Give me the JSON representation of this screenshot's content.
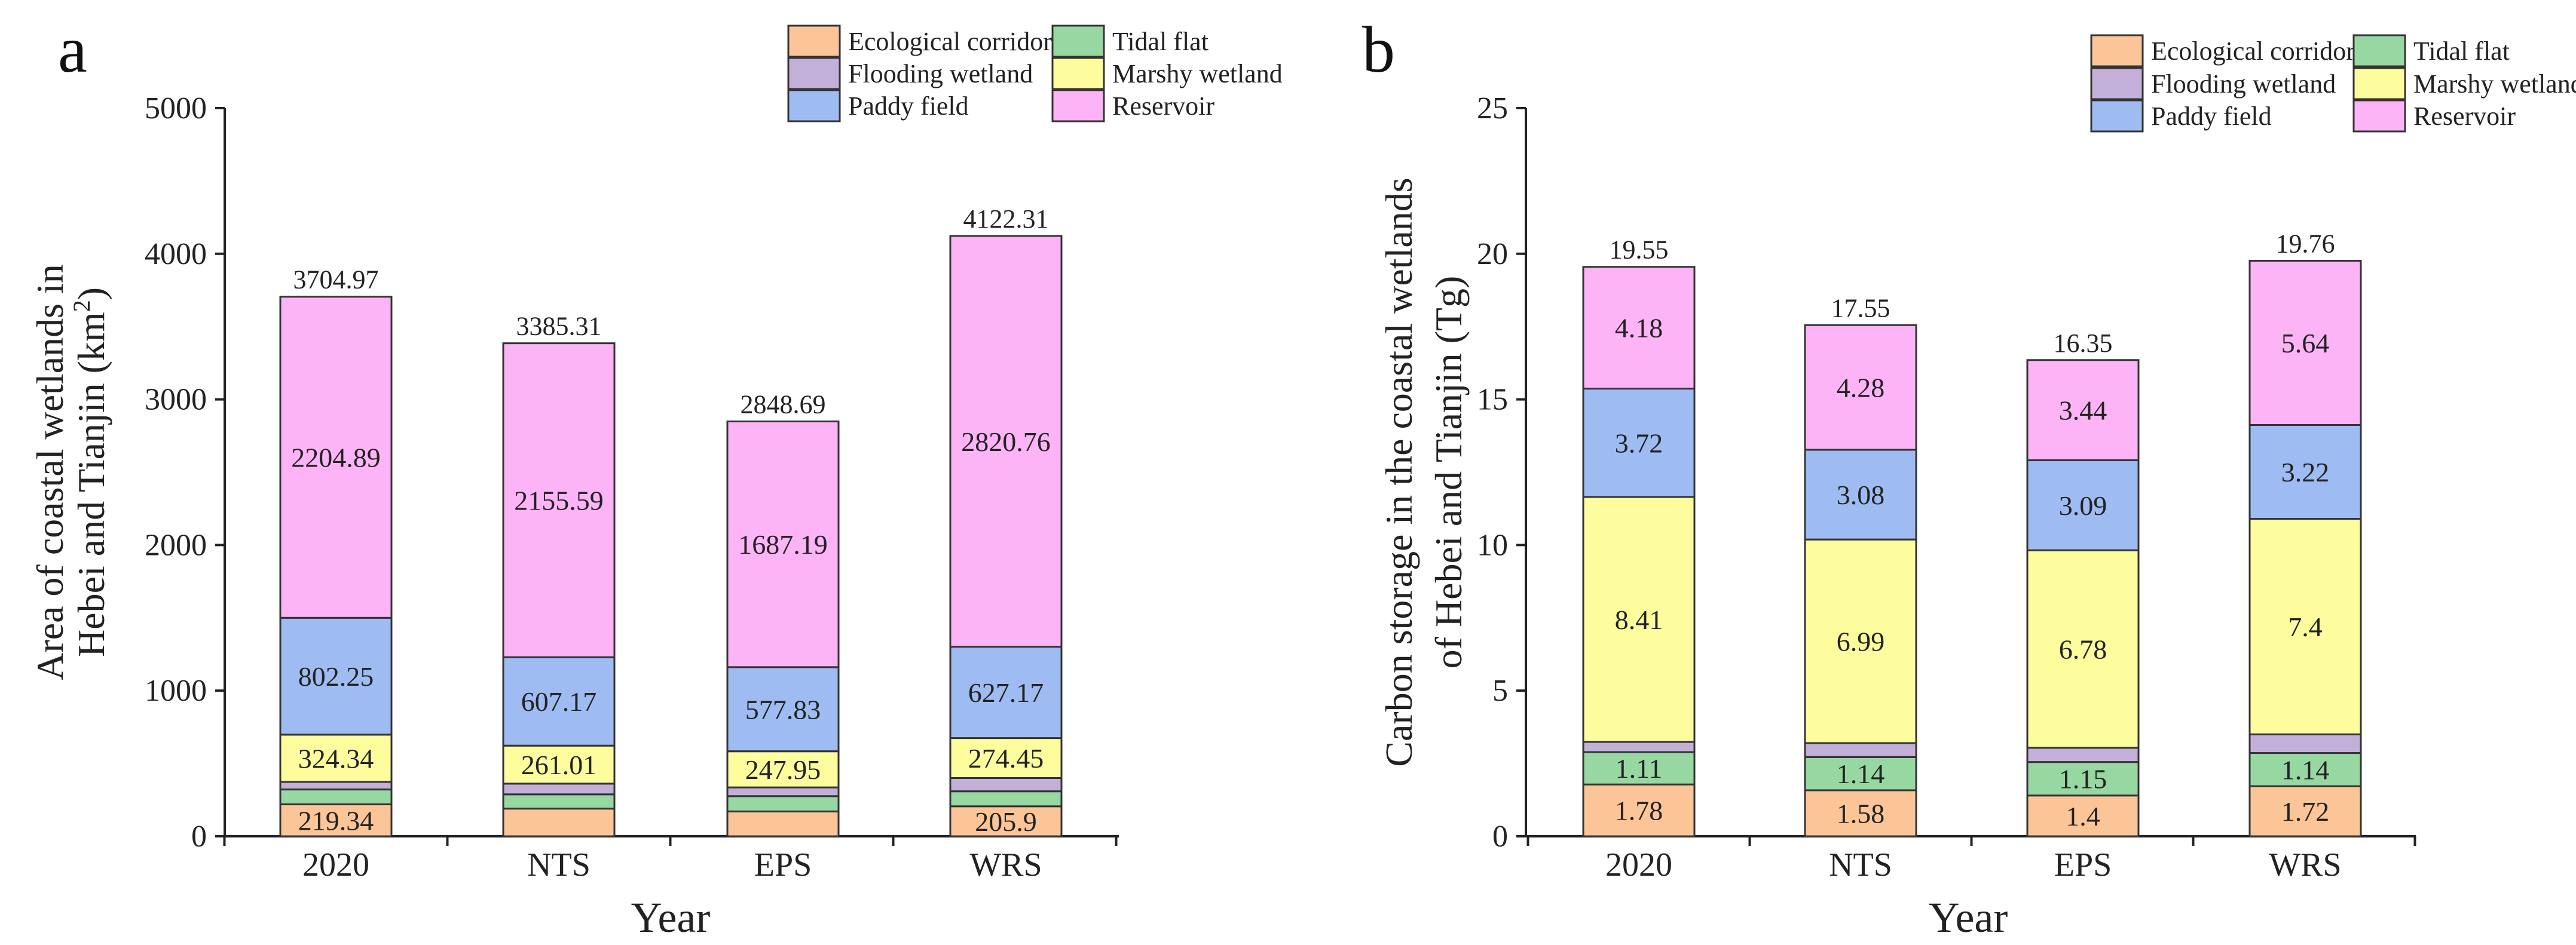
{
  "legend": [
    "Ecological corridor",
    "Tidal flat",
    "Flooding wetland",
    "Marshy wetland",
    "Paddy field",
    "Reservoir"
  ],
  "series_colors": {
    "Ecological corridor": "#FBC598",
    "Tidal flat": "#97D8A2",
    "Flooding wetland": "#C3B0D9",
    "Marshy wetland": "#FDFD9E",
    "Paddy field": "#9EBCF2",
    "Reservoir": "#FDB4F6"
  },
  "chart_data": [
    {
      "panel": "a",
      "type": "bar",
      "stacked": true,
      "title": "",
      "xlabel": "Year",
      "ylabel_lines": [
        "Area of coastal wetlands in",
        "Hebei and Tianjin (km",
        "2",
        ")"
      ],
      "ylim": [
        0,
        5000
      ],
      "yticks": [
        0,
        1000,
        2000,
        3000,
        4000,
        5000
      ],
      "categories": [
        "2020",
        "NTS",
        "EPS",
        "WRS"
      ],
      "totals": [
        "3704.97",
        "3385.31",
        "2848.69",
        "4122.31"
      ],
      "legend_position": "top-right",
      "series": [
        {
          "name": "Ecological corridor",
          "values": [
            219.34,
            190,
            170.72,
            205.9
          ],
          "labels": [
            "219.34",
            "",
            "",
            "205.9"
          ]
        },
        {
          "name": "Tidal flat",
          "values": [
            102.15,
            98,
            105,
            103.03
          ],
          "labels": [
            "",
            "",
            "",
            ""
          ]
        },
        {
          "name": "Flooding wetland",
          "values": [
            52,
            73.54,
            60,
            91
          ],
          "labels": [
            "",
            "",
            "",
            ""
          ]
        },
        {
          "name": "Marshy wetland",
          "values": [
            324.34,
            261.01,
            247.95,
            274.45
          ],
          "labels": [
            "324.34",
            "261.01",
            "247.95",
            "274.45"
          ]
        },
        {
          "name": "Paddy field",
          "values": [
            802.25,
            607.17,
            577.83,
            627.17
          ],
          "labels": [
            "802.25",
            "607.17",
            "577.83",
            "627.17"
          ]
        },
        {
          "name": "Reservoir",
          "values": [
            2204.89,
            2155.59,
            1687.19,
            2820.76
          ],
          "labels": [
            "2204.89",
            "2155.59",
            "1687.19",
            "2820.76"
          ]
        }
      ]
    },
    {
      "panel": "b",
      "type": "bar",
      "stacked": true,
      "title": "",
      "xlabel": "Year",
      "ylabel_lines": [
        "Carbon storage in the coastal wetlands",
        "of Hebei and Tianjin (Tg)"
      ],
      "ylim": [
        0,
        25
      ],
      "yticks": [
        0,
        5,
        10,
        15,
        20,
        25
      ],
      "categories": [
        "2020",
        "NTS",
        "EPS",
        "WRS"
      ],
      "totals": [
        "19.55",
        "17.55",
        "16.35",
        "19.76"
      ],
      "legend_position": "top-right",
      "series": [
        {
          "name": "Ecological corridor",
          "values": [
            1.78,
            1.58,
            1.4,
            1.72
          ],
          "labels": [
            "1.78",
            "1.58",
            "1.4",
            "1.72"
          ]
        },
        {
          "name": "Tidal flat",
          "values": [
            1.11,
            1.14,
            1.15,
            1.14
          ],
          "labels": [
            "1.11",
            "1.14",
            "1.15",
            "1.14"
          ]
        },
        {
          "name": "Flooding wetland",
          "values": [
            0.35,
            0.48,
            0.49,
            0.64
          ],
          "labels": [
            "",
            "",
            "",
            ""
          ]
        },
        {
          "name": "Marshy wetland",
          "values": [
            8.41,
            6.99,
            6.78,
            7.4
          ],
          "labels": [
            "8.41",
            "6.99",
            "6.78",
            "7.4"
          ]
        },
        {
          "name": "Paddy field",
          "values": [
            3.72,
            3.08,
            3.09,
            3.22
          ],
          "labels": [
            "3.72",
            "3.08",
            "3.09",
            "3.22"
          ]
        },
        {
          "name": "Reservoir",
          "values": [
            4.18,
            4.28,
            3.44,
            5.64
          ],
          "labels": [
            "4.18",
            "4.28",
            "3.44",
            "5.64"
          ]
        }
      ]
    }
  ]
}
